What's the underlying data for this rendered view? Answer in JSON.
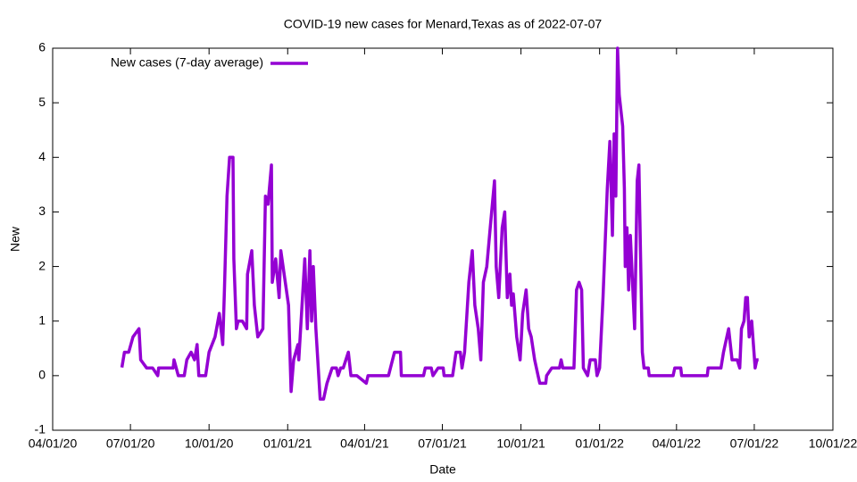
{
  "chart_data": {
    "type": "line",
    "title": "COVID-19 new cases for Menard,Texas as of 2022-07-07",
    "x_label": "Date",
    "y_label": "New",
    "legend": "top-left",
    "xlim": [
      "2020-04-01",
      "2022-10-01"
    ],
    "xticks": [
      {
        "value": "2020-04-01",
        "label": "04/01/20"
      },
      {
        "value": "2020-07-01",
        "label": "07/01/20"
      },
      {
        "value": "2020-10-01",
        "label": "10/01/20"
      },
      {
        "value": "2021-01-01",
        "label": "01/01/21"
      },
      {
        "value": "2021-04-01",
        "label": "04/01/21"
      },
      {
        "value": "2021-07-01",
        "label": "07/01/21"
      },
      {
        "value": "2021-10-01",
        "label": "10/01/21"
      },
      {
        "value": "2022-01-01",
        "label": "01/01/22"
      },
      {
        "value": "2022-04-01",
        "label": "04/01/22"
      },
      {
        "value": "2022-07-01",
        "label": "07/01/22"
      },
      {
        "value": "2022-10-01",
        "label": "10/01/22"
      }
    ],
    "ylim": [
      -1,
      6
    ],
    "yticks": [
      -1,
      0,
      1,
      2,
      3,
      4,
      5,
      6
    ],
    "x": [
      "2020-06-21",
      "2020-06-24",
      "2020-06-29",
      "2020-07-04",
      "2020-07-11",
      "2020-07-13",
      "2020-07-20",
      "2020-07-27",
      "2020-08-02",
      "2020-08-03",
      "2020-08-20",
      "2020-08-21",
      "2020-08-26",
      "2020-09-02",
      "2020-09-05",
      "2020-09-10",
      "2020-09-14",
      "2020-09-17",
      "2020-09-19",
      "2020-09-27",
      "2020-10-01",
      "2020-10-08",
      "2020-10-13",
      "2020-10-17",
      "2020-10-19",
      "2020-10-22",
      "2020-10-25",
      "2020-10-29",
      "2020-10-30",
      "2020-11-02",
      "2020-11-04",
      "2020-11-09",
      "2020-11-14",
      "2020-11-15",
      "2020-11-20",
      "2020-11-23",
      "2020-11-27",
      "2020-12-03",
      "2020-12-06",
      "2020-12-09",
      "2020-12-13",
      "2020-12-14",
      "2020-12-18",
      "2020-12-22",
      "2020-12-24",
      "2021-01-02",
      "2021-01-05",
      "2021-01-08",
      "2021-01-13",
      "2021-01-14",
      "2021-01-21",
      "2021-01-24",
      "2021-01-27",
      "2021-01-29",
      "2021-01-31",
      "2021-02-03",
      "2021-02-08",
      "2021-02-12",
      "2021-02-16",
      "2021-02-22",
      "2021-02-27",
      "2021-03-01",
      "2021-03-04",
      "2021-03-07",
      "2021-03-13",
      "2021-03-16",
      "2021-03-23",
      "2021-04-03",
      "2021-04-05",
      "2021-04-29",
      "2021-05-06",
      "2021-05-13",
      "2021-05-14",
      "2021-06-09",
      "2021-06-11",
      "2021-06-18",
      "2021-06-20",
      "2021-06-26",
      "2021-07-02",
      "2021-07-03",
      "2021-07-13",
      "2021-07-17",
      "2021-07-22",
      "2021-07-24",
      "2021-07-27",
      "2021-08-01",
      "2021-08-05",
      "2021-08-08",
      "2021-08-12",
      "2021-08-15",
      "2021-08-18",
      "2021-08-22",
      "2021-08-26",
      "2021-08-31",
      "2021-09-02",
      "2021-09-05",
      "2021-09-09",
      "2021-09-12",
      "2021-09-15",
      "2021-09-18",
      "2021-09-20",
      "2021-09-22",
      "2021-09-26",
      "2021-09-30",
      "2021-10-03",
      "2021-10-07",
      "2021-10-10",
      "2021-10-13",
      "2021-10-17",
      "2021-10-21",
      "2021-10-23",
      "2021-10-30",
      "2021-10-31",
      "2021-11-06",
      "2021-11-15",
      "2021-11-17",
      "2021-11-19",
      "2021-12-02",
      "2021-12-05",
      "2021-12-08",
      "2021-12-11",
      "2021-12-13",
      "2021-12-18",
      "2021-12-21",
      "2021-12-27",
      "2021-12-29",
      "2022-01-01",
      "2022-01-05",
      "2022-01-10",
      "2022-01-13",
      "2022-01-16",
      "2022-01-18",
      "2022-01-20",
      "2022-01-22",
      "2022-01-24",
      "2022-01-28",
      "2022-01-30",
      "2022-01-31",
      "2022-02-02",
      "2022-02-04",
      "2022-02-06",
      "2022-02-11",
      "2022-02-14",
      "2022-02-16",
      "2022-02-18",
      "2022-02-20",
      "2022-02-22",
      "2022-02-27",
      "2022-02-28",
      "2022-03-28",
      "2022-03-30",
      "2022-04-06",
      "2022-04-07",
      "2022-05-07",
      "2022-05-08",
      "2022-05-23",
      "2022-05-26",
      "2022-06-01",
      "2022-06-05",
      "2022-06-11",
      "2022-06-14",
      "2022-06-16",
      "2022-06-19",
      "2022-06-21",
      "2022-06-23",
      "2022-06-25",
      "2022-06-28",
      "2022-06-30",
      "2022-07-02",
      "2022-07-04",
      "2022-07-06"
    ],
    "series": [
      {
        "name": "New cases (7-day average)",
        "color": "#9400d3",
        "values": [
          0.15,
          0.43,
          0.43,
          0.71,
          0.86,
          0.29,
          0.14,
          0.14,
          0,
          0.14,
          0.14,
          0.29,
          0,
          0,
          0.29,
          0.43,
          0.29,
          0.57,
          0,
          0,
          0.43,
          0.71,
          1.14,
          0.57,
          1.57,
          3.29,
          4,
          4,
          2.14,
          0.86,
          1,
          1,
          0.86,
          1.86,
          2.29,
          1.29,
          0.71,
          0.86,
          3.29,
          3.14,
          3.86,
          1.71,
          2.14,
          1.43,
          2.29,
          1.29,
          -0.29,
          0.29,
          0.57,
          0.29,
          2.14,
          0.86,
          2.29,
          1,
          2,
          0.86,
          -0.43,
          -0.43,
          -0.14,
          0.14,
          0.14,
          0,
          0.14,
          0.14,
          0.43,
          0,
          0,
          -0.14,
          0,
          0,
          0.43,
          0.43,
          0,
          0,
          0.14,
          0.14,
          0,
          0.14,
          0.14,
          0,
          0,
          0.43,
          0.43,
          0.14,
          0.43,
          1.71,
          2.29,
          1.29,
          0.86,
          0.29,
          1.71,
          2,
          2.71,
          3.57,
          2,
          1.43,
          2.71,
          3,
          1.43,
          1.86,
          1.29,
          1.5,
          0.71,
          0.29,
          1.14,
          1.57,
          0.86,
          0.71,
          0.29,
          0,
          -0.14,
          -0.14,
          0,
          0.14,
          0.14,
          0.29,
          0.14,
          0.14,
          1.57,
          1.71,
          1.57,
          0.14,
          0,
          0.29,
          0.29,
          0,
          0.14,
          1.43,
          3.43,
          4.29,
          2.57,
          4.43,
          3.29,
          6,
          5.14,
          4.57,
          3.43,
          2,
          2.71,
          1.57,
          2.57,
          0.86,
          3.57,
          3.86,
          2.14,
          0.43,
          0.14,
          0.14,
          0,
          0,
          0.14,
          0.14,
          0,
          0,
          0.14,
          0.14,
          0.43,
          0.86,
          0.29,
          0.29,
          0.14,
          0.86,
          1,
          1.43,
          1.43,
          0.71,
          1,
          0.57,
          0.14,
          0.29,
          0.29
        ]
      }
    ]
  }
}
